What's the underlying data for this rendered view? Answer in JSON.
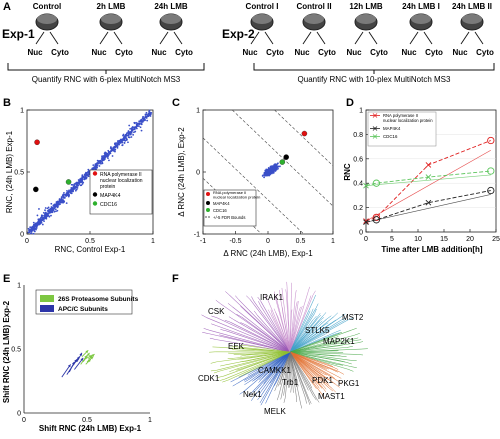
{
  "panel_a": {
    "letter": "A",
    "exp1": {
      "label": "Exp-1",
      "dishes": [
        "Control",
        "2h LMB",
        "24h LMB"
      ],
      "nuc": "Nuc",
      "cyto": "Cyto",
      "quantify": "Quantify RNC with 6-plex MultiNotch MS3"
    },
    "exp2": {
      "label": "Exp-2",
      "dishes": [
        "Control I",
        "Control II",
        "12h LMB",
        "24h LMB I",
        "24h LMB II"
      ],
      "nuc": "Nuc",
      "cyto": "Cyto",
      "quantify": "Quantify RNC with 10-plex MultiNotch MS3"
    }
  },
  "chart_data": [
    {
      "panel": "B",
      "type": "scatter",
      "xlabel": "RNC, Control Exp-1",
      "ylabel": "RNC, (24h LMB) Exp-1",
      "xlim": [
        0,
        1
      ],
      "ylim": [
        0,
        1
      ],
      "xticks": [
        "0",
        "0.5",
        "1"
      ],
      "yticks": [
        "0",
        "0.5",
        "1"
      ],
      "legend_position": "bottom-right",
      "legend": [
        {
          "name": "RNA polymerase II nuclear localization protein",
          "color": "#e01010"
        },
        {
          "name": "MAP4K4",
          "color": "#000000"
        },
        {
          "name": "CDC16",
          "color": "#2db02d"
        }
      ],
      "highlight_points": [
        {
          "x": 0.08,
          "y": 0.74,
          "color": "#e01010"
        },
        {
          "x": 0.07,
          "y": 0.36,
          "color": "#000000"
        },
        {
          "x": 0.33,
          "y": 0.42,
          "color": "#2db02d"
        }
      ],
      "colors": {
        "cloud": "#3a4fc8"
      }
    },
    {
      "panel": "C",
      "type": "scatter",
      "xlabel": "Δ RNC (24h LMB), Exp-1",
      "ylabel": "Δ RNC (24h LMB), Exp-2",
      "xlim": [
        -1,
        1
      ],
      "ylim": [
        -1,
        1
      ],
      "xticks": [
        "-1",
        "-0.5",
        "0",
        "0.5",
        "1"
      ],
      "yticks": [
        "-1",
        "0",
        "1"
      ],
      "legend_position": "bottom-left",
      "legend": [
        {
          "name": "RNA polymerase II nuclear localization protein",
          "color": "#e01010"
        },
        {
          "name": "MAP4K4",
          "color": "#000000"
        },
        {
          "name": "CDC16",
          "color": "#2db02d"
        },
        {
          "name": "+/-5 FDR Bounds",
          "color": "#555555"
        }
      ],
      "highlight_points": [
        {
          "x": 0.56,
          "y": 0.62,
          "color": "#e01010"
        },
        {
          "x": 0.28,
          "y": 0.24,
          "color": "#000000"
        },
        {
          "x": 0.22,
          "y": 0.16,
          "color": "#2db02d"
        }
      ],
      "colors": {
        "cloud": "#3a4fc8"
      }
    },
    {
      "panel": "D",
      "type": "line",
      "xlabel": "Time after LMB addition[h]",
      "ylabel": "RNC",
      "xlim": [
        0,
        25
      ],
      "ylim": [
        0,
        1
      ],
      "xticks": [
        "0",
        "5",
        "10",
        "15",
        "20",
        "25"
      ],
      "yticks": [
        "0",
        "0.2",
        "0.4",
        "0.6",
        "0.8",
        "1"
      ],
      "legend_position": "top-left",
      "series": [
        {
          "name": "RNA polymerase II nuclear localization protein",
          "color": "#e02020",
          "x": [
            0,
            2,
            12,
            24
          ],
          "values": [
            0.09,
            0.12,
            0.55,
            0.75
          ]
        },
        {
          "name": "MAP4K4",
          "color": "#222222",
          "x": [
            0,
            2,
            12,
            24
          ],
          "values": [
            0.08,
            0.1,
            0.24,
            0.34
          ]
        },
        {
          "name": "CDC16",
          "color": "#5cc55c",
          "x": [
            0,
            2,
            12,
            24
          ],
          "values": [
            0.38,
            0.4,
            0.45,
            0.5
          ]
        }
      ]
    },
    {
      "panel": "E",
      "type": "scatter",
      "xlabel": "Shift RNC (24h LMB) Exp-1",
      "ylabel": "Shift RNC (24h LMB) Exp-2",
      "xlim": [
        0,
        1
      ],
      "ylim": [
        0,
        1
      ],
      "xticks": [
        "0",
        "0.5",
        "1"
      ],
      "yticks": [
        "0",
        "0.5",
        "1"
      ],
      "legend_position": "top",
      "legend": [
        {
          "name": "26S Proteasome Subunits",
          "color": "#7dc742"
        },
        {
          "name": "APC/C Subunits",
          "color": "#2c35a8"
        }
      ],
      "arrows": [
        {
          "x0": 0.3,
          "y0": 0.28,
          "x1": 0.37,
          "y1": 0.38,
          "color": "#2c35a8"
        },
        {
          "x0": 0.34,
          "y0": 0.3,
          "x1": 0.42,
          "y1": 0.42,
          "color": "#2c35a8"
        },
        {
          "x0": 0.38,
          "y0": 0.36,
          "x1": 0.44,
          "y1": 0.44,
          "color": "#2c35a8"
        },
        {
          "x0": 0.4,
          "y0": 0.34,
          "x1": 0.47,
          "y1": 0.43,
          "color": "#2c35a8"
        },
        {
          "x0": 0.42,
          "y0": 0.4,
          "x1": 0.46,
          "y1": 0.47,
          "color": "#2c35a8"
        },
        {
          "x0": 0.36,
          "y0": 0.32,
          "x1": 0.4,
          "y1": 0.4,
          "color": "#2c35a8"
        },
        {
          "x0": 0.45,
          "y0": 0.38,
          "x1": 0.5,
          "y1": 0.45,
          "color": "#7dc742"
        },
        {
          "x0": 0.47,
          "y0": 0.4,
          "x1": 0.52,
          "y1": 0.47,
          "color": "#7dc742"
        },
        {
          "x0": 0.48,
          "y0": 0.42,
          "x1": 0.54,
          "y1": 0.45,
          "color": "#7dc742"
        },
        {
          "x0": 0.5,
          "y0": 0.4,
          "x1": 0.55,
          "y1": 0.44,
          "color": "#7dc742"
        },
        {
          "x0": 0.46,
          "y0": 0.44,
          "x1": 0.51,
          "y1": 0.49,
          "color": "#7dc742"
        },
        {
          "x0": 0.49,
          "y0": 0.38,
          "x1": 0.53,
          "y1": 0.42,
          "color": "#7dc742"
        },
        {
          "x0": 0.51,
          "y0": 0.42,
          "x1": 0.56,
          "y1": 0.46,
          "color": "#7dc742"
        }
      ]
    }
  ],
  "panel_f": {
    "letter": "F",
    "labels": [
      "CSK",
      "IRAK1",
      "STLK5",
      "MST2",
      "MAP2K1",
      "EEK",
      "CDK1",
      "CAMKK1",
      "Trb1",
      "PDK1",
      "PKG1",
      "Nek1",
      "MAST1",
      "MELK"
    ]
  },
  "panel_letters": {
    "b": "B",
    "c": "C",
    "d": "D",
    "e": "E"
  }
}
